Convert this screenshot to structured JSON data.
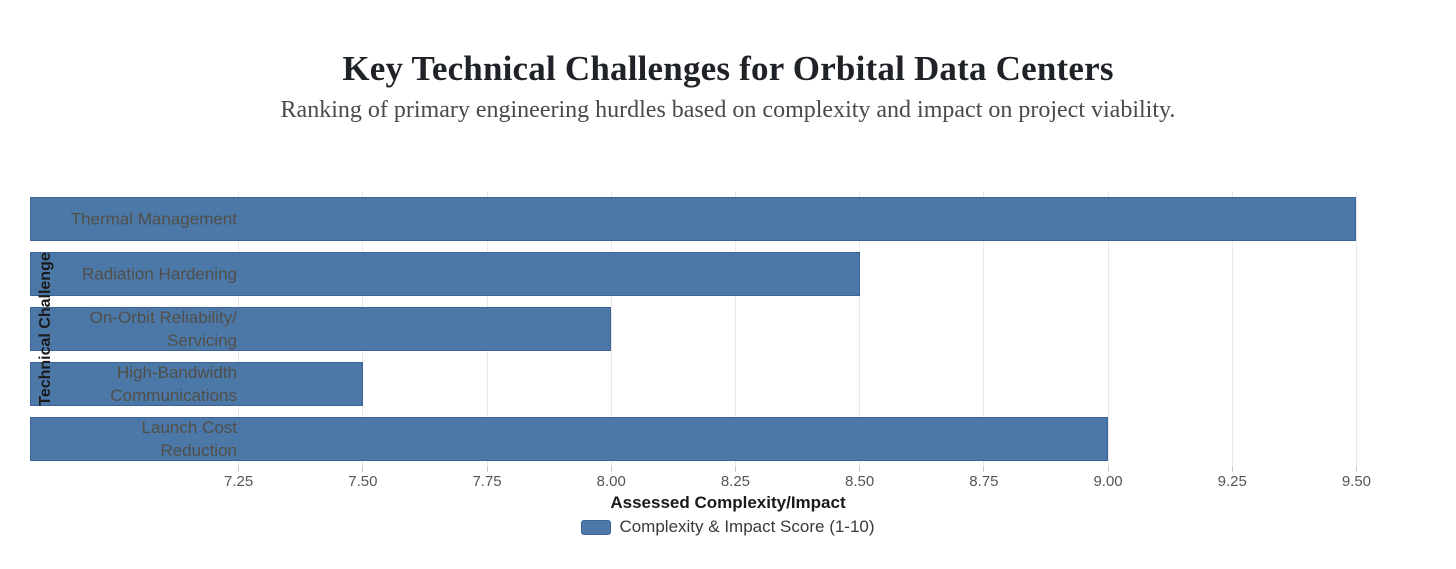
{
  "header": {
    "title": "Key Technical Challenges for Orbital Data Centers",
    "subtitle": "Ranking of primary engineering hurdles based on complexity and impact on project viability."
  },
  "chart_data": {
    "type": "bar",
    "orientation": "horizontal",
    "title": "Key Technical Challenges for Orbital Data Centers",
    "subtitle": "Ranking of primary engineering hurdles based on complexity and impact on project viability.",
    "categories": [
      "Thermal Management",
      "Radiation Hardening",
      "On-Orbit Reliability/Servicing",
      "High-Bandwidth Communications",
      "Launch Cost Reduction"
    ],
    "category_display": [
      "Thermal Management",
      "Radiation Hardening",
      "On-Orbit Reliability/\nServicing",
      "High-Bandwidth\nCommunications",
      "Launch Cost\nReduction"
    ],
    "values": [
      9.5,
      8.5,
      8.0,
      7.5,
      9.0
    ],
    "series_name": "Complexity & Impact Score (1-10)",
    "xlabel": "Assessed Complexity/Impact",
    "ylabel": "Technical Challenge",
    "xlim": [
      6.83,
      9.64
    ],
    "xticks": [
      7.25,
      7.5,
      7.75,
      8.0,
      8.25,
      8.5,
      8.75,
      9.0,
      9.25,
      9.5
    ],
    "xtick_labels": [
      "7.25",
      "7.50",
      "7.75",
      "8.00",
      "8.25",
      "8.50",
      "8.75",
      "9.00",
      "9.25",
      "9.50"
    ],
    "grid": true,
    "legend_position": "bottom",
    "bar_color": "#4C78A8",
    "bar_border_color": "#3D6399",
    "grid_color": "#e9e9e9"
  }
}
